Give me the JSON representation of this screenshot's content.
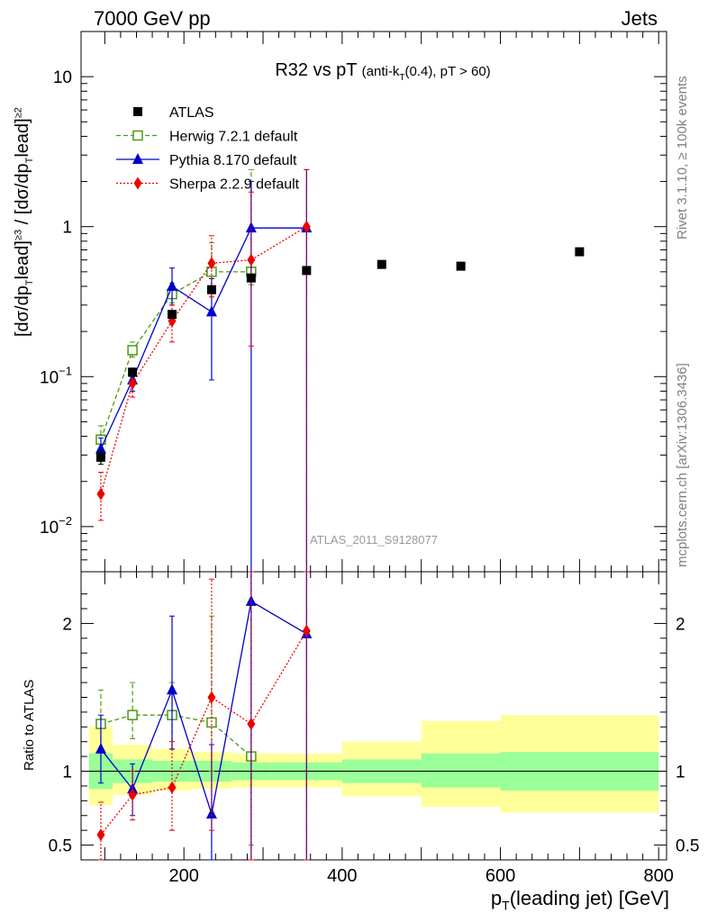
{
  "header": {
    "left": "7000 GeV pp",
    "right": "Jets"
  },
  "side_labels": {
    "rivet": "Rivet 3.1.10, ≥ 100k events",
    "mcplots": "mcplots.cern.ch [arXiv:1306.3436]"
  },
  "analysis_tag": "ATLAS_2011_S9128077",
  "chart_data": [
    {
      "type": "scatter",
      "title": "R32 vs pT (anti-k_T(0.4), pT > 60)",
      "title_main": "R32 vs pT",
      "title_paren": "(anti-k",
      "title_sub": "T",
      "title_tail": "(0.4), pT > 60)",
      "ylabel": "[dσ/dp_T^lead]^≥3 / [dσ/dp_T^lead]^≥2",
      "ylabel_parts": {
        "p1": "[dσ/dp",
        "s1": "T",
        "p2": "lead]",
        "e1": "≥3",
        "p3": " / [dσ/dp",
        "s2": "T",
        "p4": "lead]",
        "e2": "≥2"
      },
      "xlabel": "p_T(leading jet) [GeV]",
      "xlabel_parts": {
        "p": "p",
        "s": "T",
        "rest": "(leading jet) [GeV]"
      },
      "yscale": "log",
      "ylim": [
        0.005,
        20
      ],
      "xlim": [
        70,
        810
      ],
      "yticks": [
        {
          "v": 0.01,
          "base": "10",
          "exp": "−2"
        },
        {
          "v": 0.1,
          "base": "10",
          "exp": "−1"
        },
        {
          "v": 1,
          "base": "1",
          "exp": ""
        },
        {
          "v": 10,
          "base": "10",
          "exp": ""
        }
      ],
      "legend_position": "top-left",
      "series": [
        {
          "name": "ATLAS",
          "color": "#000000",
          "marker": "square",
          "line": "none",
          "x": [
            95,
            135,
            185,
            235,
            285,
            355,
            450,
            550,
            700
          ],
          "y": [
            0.029,
            0.107,
            0.26,
            0.38,
            0.455,
            0.51,
            0.56,
            0.545,
            0.68
          ],
          "yerr_lo": [
            0.026,
            0.1,
            0.245,
            0.36,
            0.435,
            0.49,
            0.54,
            0.525,
            0.66
          ],
          "yerr_hi": [
            0.032,
            0.114,
            0.275,
            0.4,
            0.475,
            0.53,
            0.58,
            0.565,
            0.7
          ]
        },
        {
          "name": "Herwig 7.2.1 default",
          "color": "#4a9a10",
          "marker": "open-square",
          "line": "dashed",
          "x": [
            95,
            135,
            185,
            235,
            285
          ],
          "y": [
            0.038,
            0.15,
            0.355,
            0.5,
            0.5
          ],
          "yerr_lo": [
            0.033,
            0.135,
            0.31,
            0.4,
            0.41
          ],
          "yerr_hi": [
            0.047,
            0.17,
            0.42,
            0.78,
            2.4
          ]
        },
        {
          "name": "Pythia 8.170 default",
          "color": "#0000cc",
          "marker": "triangle",
          "line": "solid",
          "x": [
            95,
            135,
            185,
            235,
            285,
            355
          ],
          "y": [
            0.033,
            0.095,
            0.4,
            0.27,
            0.98,
            0.98
          ],
          "yerr_lo": [
            0.028,
            0.08,
            0.3,
            0.095,
            0.001,
            0.001
          ],
          "yerr_hi": [
            0.039,
            0.11,
            0.53,
            0.45,
            2.0,
            2.4
          ]
        },
        {
          "name": "Sherpa 2.2.9 default",
          "color": "#ee0000",
          "marker": "diamond",
          "line": "dotted",
          "x": [
            95,
            135,
            185,
            235,
            285,
            355
          ],
          "y": [
            0.0165,
            0.09,
            0.235,
            0.57,
            0.6,
            1.0
          ],
          "yerr_lo": [
            0.011,
            0.073,
            0.17,
            0.34,
            0.16,
            0.001
          ],
          "yerr_hi": [
            0.023,
            0.105,
            0.3,
            0.87,
            1.7,
            2.4
          ]
        }
      ]
    },
    {
      "type": "scatter",
      "ylabel": "Ratio to ATLAS",
      "xlabel": "p_T(leading jet) [GeV]",
      "ylim": [
        0.4,
        2.35
      ],
      "xlim": [
        70,
        810
      ],
      "xticks": [
        200,
        400,
        600,
        800
      ],
      "yticks": [
        0.5,
        1,
        2
      ],
      "reference_line": 1,
      "bands": [
        {
          "x0": 80,
          "x1": 110,
          "green": [
            0.88,
            1.12
          ],
          "yellow": [
            0.77,
            1.3
          ]
        },
        {
          "x0": 110,
          "x1": 160,
          "green": [
            0.92,
            1.08
          ],
          "yellow": [
            0.84,
            1.18
          ]
        },
        {
          "x0": 160,
          "x1": 210,
          "green": [
            0.93,
            1.07
          ],
          "yellow": [
            0.87,
            1.15
          ]
        },
        {
          "x0": 210,
          "x1": 260,
          "green": [
            0.93,
            1.07
          ],
          "yellow": [
            0.88,
            1.13
          ]
        },
        {
          "x0": 260,
          "x1": 310,
          "green": [
            0.94,
            1.06
          ],
          "yellow": [
            0.89,
            1.12
          ]
        },
        {
          "x0": 310,
          "x1": 400,
          "green": [
            0.94,
            1.06
          ],
          "yellow": [
            0.89,
            1.12
          ]
        },
        {
          "x0": 400,
          "x1": 500,
          "green": [
            0.92,
            1.08
          ],
          "yellow": [
            0.83,
            1.2
          ]
        },
        {
          "x0": 500,
          "x1": 600,
          "green": [
            0.89,
            1.12
          ],
          "yellow": [
            0.76,
            1.34
          ]
        },
        {
          "x0": 600,
          "x1": 800,
          "green": [
            0.87,
            1.13
          ],
          "yellow": [
            0.72,
            1.38
          ]
        }
      ],
      "series": [
        {
          "name": "Herwig 7.2.1 default",
          "color": "#4a9a10",
          "marker": "open-square",
          "line": "dashed",
          "x": [
            95,
            135,
            185,
            235,
            285
          ],
          "y": [
            1.32,
            1.38,
            1.38,
            1.33,
            1.1
          ],
          "yerr_lo": [
            1.15,
            1.22,
            1.15,
            1.0,
            0.5
          ],
          "yerr_hi": [
            1.55,
            1.6,
            1.6,
            2.05,
            2.35
          ]
        },
        {
          "name": "Pythia 8.170 default",
          "color": "#0000cc",
          "marker": "triangle",
          "line": "solid",
          "x": [
            95,
            135,
            185,
            235,
            285,
            355
          ],
          "y": [
            1.15,
            0.88,
            1.55,
            0.71,
            2.15,
            1.93
          ],
          "yerr_lo": [
            0.92,
            0.7,
            1.15,
            0.25,
            0.3,
            0.3
          ],
          "yerr_hi": [
            1.38,
            1.05,
            2.05,
            1.18,
            2.35,
            2.35
          ]
        },
        {
          "name": "Sherpa 2.2.9 default",
          "color": "#ee0000",
          "marker": "diamond",
          "line": "dotted",
          "x": [
            95,
            135,
            185,
            235,
            285,
            355
          ],
          "y": [
            0.57,
            0.84,
            0.89,
            1.5,
            1.32,
            1.95
          ],
          "yerr_lo": [
            0.38,
            0.67,
            0.6,
            0.6,
            0.3,
            0.3
          ],
          "yerr_hi": [
            0.79,
            1.0,
            1.2,
            2.3,
            2.35,
            2.35
          ]
        }
      ]
    }
  ]
}
